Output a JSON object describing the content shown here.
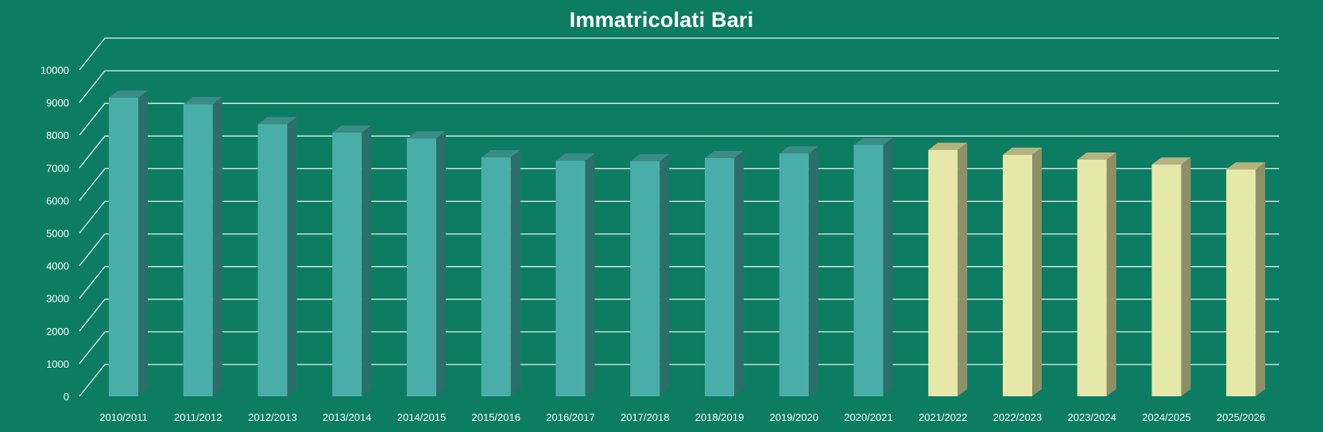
{
  "chart_data": {
    "type": "bar",
    "title": "Immatricolati Bari",
    "xlabel": "",
    "ylabel": "",
    "ylim": [
      0,
      10000
    ],
    "yticks": [
      0,
      1000,
      2000,
      3000,
      4000,
      5000,
      6000,
      7000,
      8000,
      9000,
      10000
    ],
    "grid": true,
    "legend": "none",
    "categories": [
      "2010/2011",
      "2011/2012",
      "2012/2013",
      "2013/2014",
      "2014/2015",
      "2015/2016",
      "2016/2017",
      "2017/2018",
      "2018/2019",
      "2019/2020",
      "2020/2021",
      "2021/2022",
      "2022/2023",
      "2023/2024",
      "2024/2025",
      "2025/2026"
    ],
    "values": [
      9150,
      8950,
      8340,
      8080,
      7900,
      7320,
      7220,
      7200,
      7300,
      7440,
      7700,
      7550,
      7400,
      7250,
      7100,
      6950
    ],
    "colors": {
      "background": "#0c7d63",
      "actual_front": "#4aaea8",
      "actual_side": "#2b6e6a",
      "actual_top": "#3b8c86",
      "projected_front": "#e6e8a9",
      "projected_side": "#8e8f66",
      "projected_top": "#b4b27f",
      "grid": "#e6f2ee",
      "text": "#ffffff"
    },
    "projected_from_index": 11
  }
}
